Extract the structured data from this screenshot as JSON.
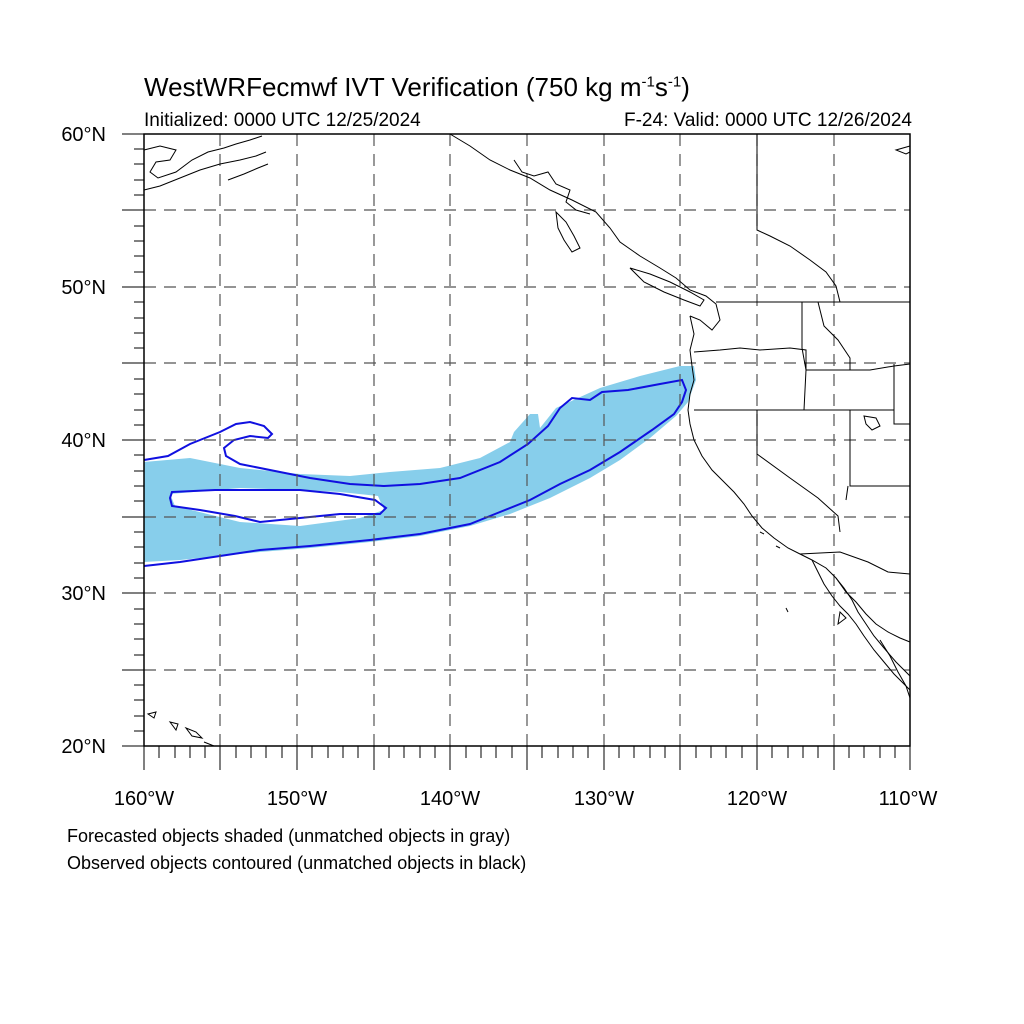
{
  "title": {
    "main": "WestWRFecmwf IVT Verification (750 kg m",
    "exp1": "-1",
    "mid": "s",
    "exp2": "-1",
    "end": ")"
  },
  "subtitle_left": "Initialized: 0000 UTC 12/25/2024",
  "subtitle_right": "F-24: Valid: 0000 UTC 12/26/2024",
  "axes": {
    "lat_labels": [
      "60°N",
      "50°N",
      "40°N",
      "30°N",
      "20°N"
    ],
    "lon_labels": [
      "160°W",
      "150°W",
      "140°W",
      "130°W",
      "120°W",
      "110°W"
    ]
  },
  "colors": {
    "forecast_fill": "#87ceeb",
    "observed_contour": "#1010e0",
    "coastline": "#000000",
    "grid": "#555555"
  },
  "legend": {
    "line1": "Forecasted objects shaded (unmatched objects in gray)",
    "line2": "Observed objects contoured (unmatched objects in black)"
  }
}
